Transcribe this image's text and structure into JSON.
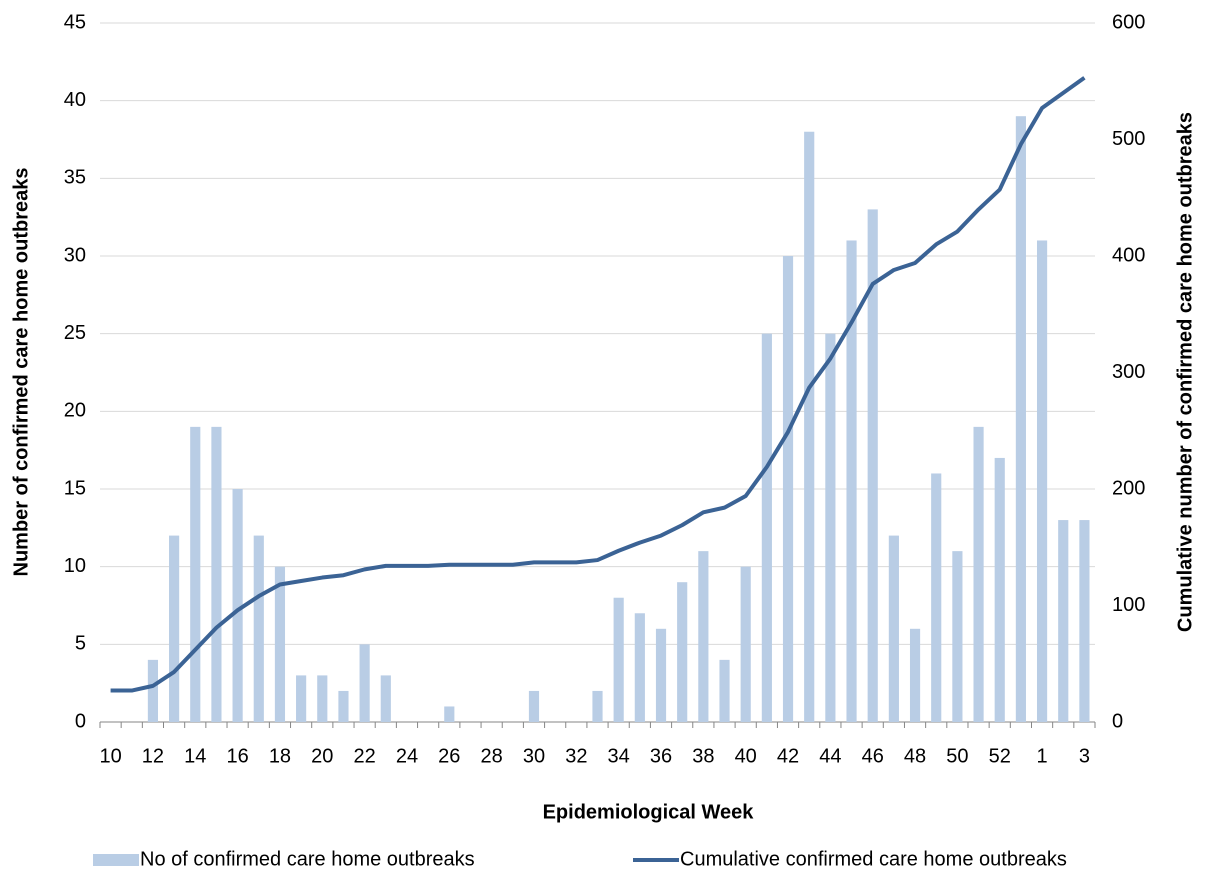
{
  "chart_data": {
    "type": "bar_line",
    "x_label": "Epidemiological Week",
    "y_label": "Number of confirmed care home outbreaks",
    "y2_label": "Cumulative number of confirmed care home outbreaks",
    "categories": [
      "10",
      null,
      "12",
      null,
      "14",
      null,
      "16",
      null,
      "18",
      null,
      "20",
      null,
      "22",
      null,
      "24",
      null,
      "26",
      null,
      "28",
      null,
      "30",
      null,
      "32",
      null,
      "34",
      null,
      "36",
      null,
      "38",
      null,
      "40",
      null,
      "42",
      null,
      "44",
      null,
      "46",
      null,
      "48",
      null,
      "50",
      null,
      "52",
      null,
      "1",
      null,
      "3"
    ],
    "series": [
      {
        "name": "No of confirmed care home outbreaks",
        "color": "#b9cde5",
        "values": [
          0,
          0,
          4,
          12,
          19,
          19,
          15,
          12,
          10,
          3,
          3,
          2,
          5,
          3,
          0,
          0,
          1,
          0,
          0,
          0,
          2,
          0,
          0,
          2,
          8,
          7,
          6,
          9,
          11,
          4,
          10,
          25,
          30,
          38,
          25,
          31,
          33,
          12,
          6,
          16,
          11,
          19,
          17,
          39,
          31,
          13,
          13
        ]
      },
      {
        "name": "Cumulative confirmed care home outbreaks",
        "color": "#3b6395",
        "axis": "y2",
        "values": [
          27,
          27,
          31,
          43,
          62,
          81,
          96,
          108,
          118,
          121,
          124,
          126,
          131,
          134,
          134,
          134,
          135,
          135,
          135,
          135,
          137,
          137,
          137,
          139,
          147,
          154,
          160,
          169,
          180,
          184,
          194,
          219,
          249,
          287,
          312,
          343,
          376,
          388,
          394,
          410,
          421,
          440,
          457,
          496,
          527,
          540,
          553
        ]
      }
    ],
    "ylim": [
      0,
      45
    ],
    "yticks": [
      0,
      5,
      10,
      15,
      20,
      25,
      30,
      35,
      40,
      45
    ],
    "y2lim": [
      0,
      600
    ],
    "y2ticks": [
      0,
      100,
      200,
      300,
      400,
      500,
      600
    ],
    "grid": true
  }
}
